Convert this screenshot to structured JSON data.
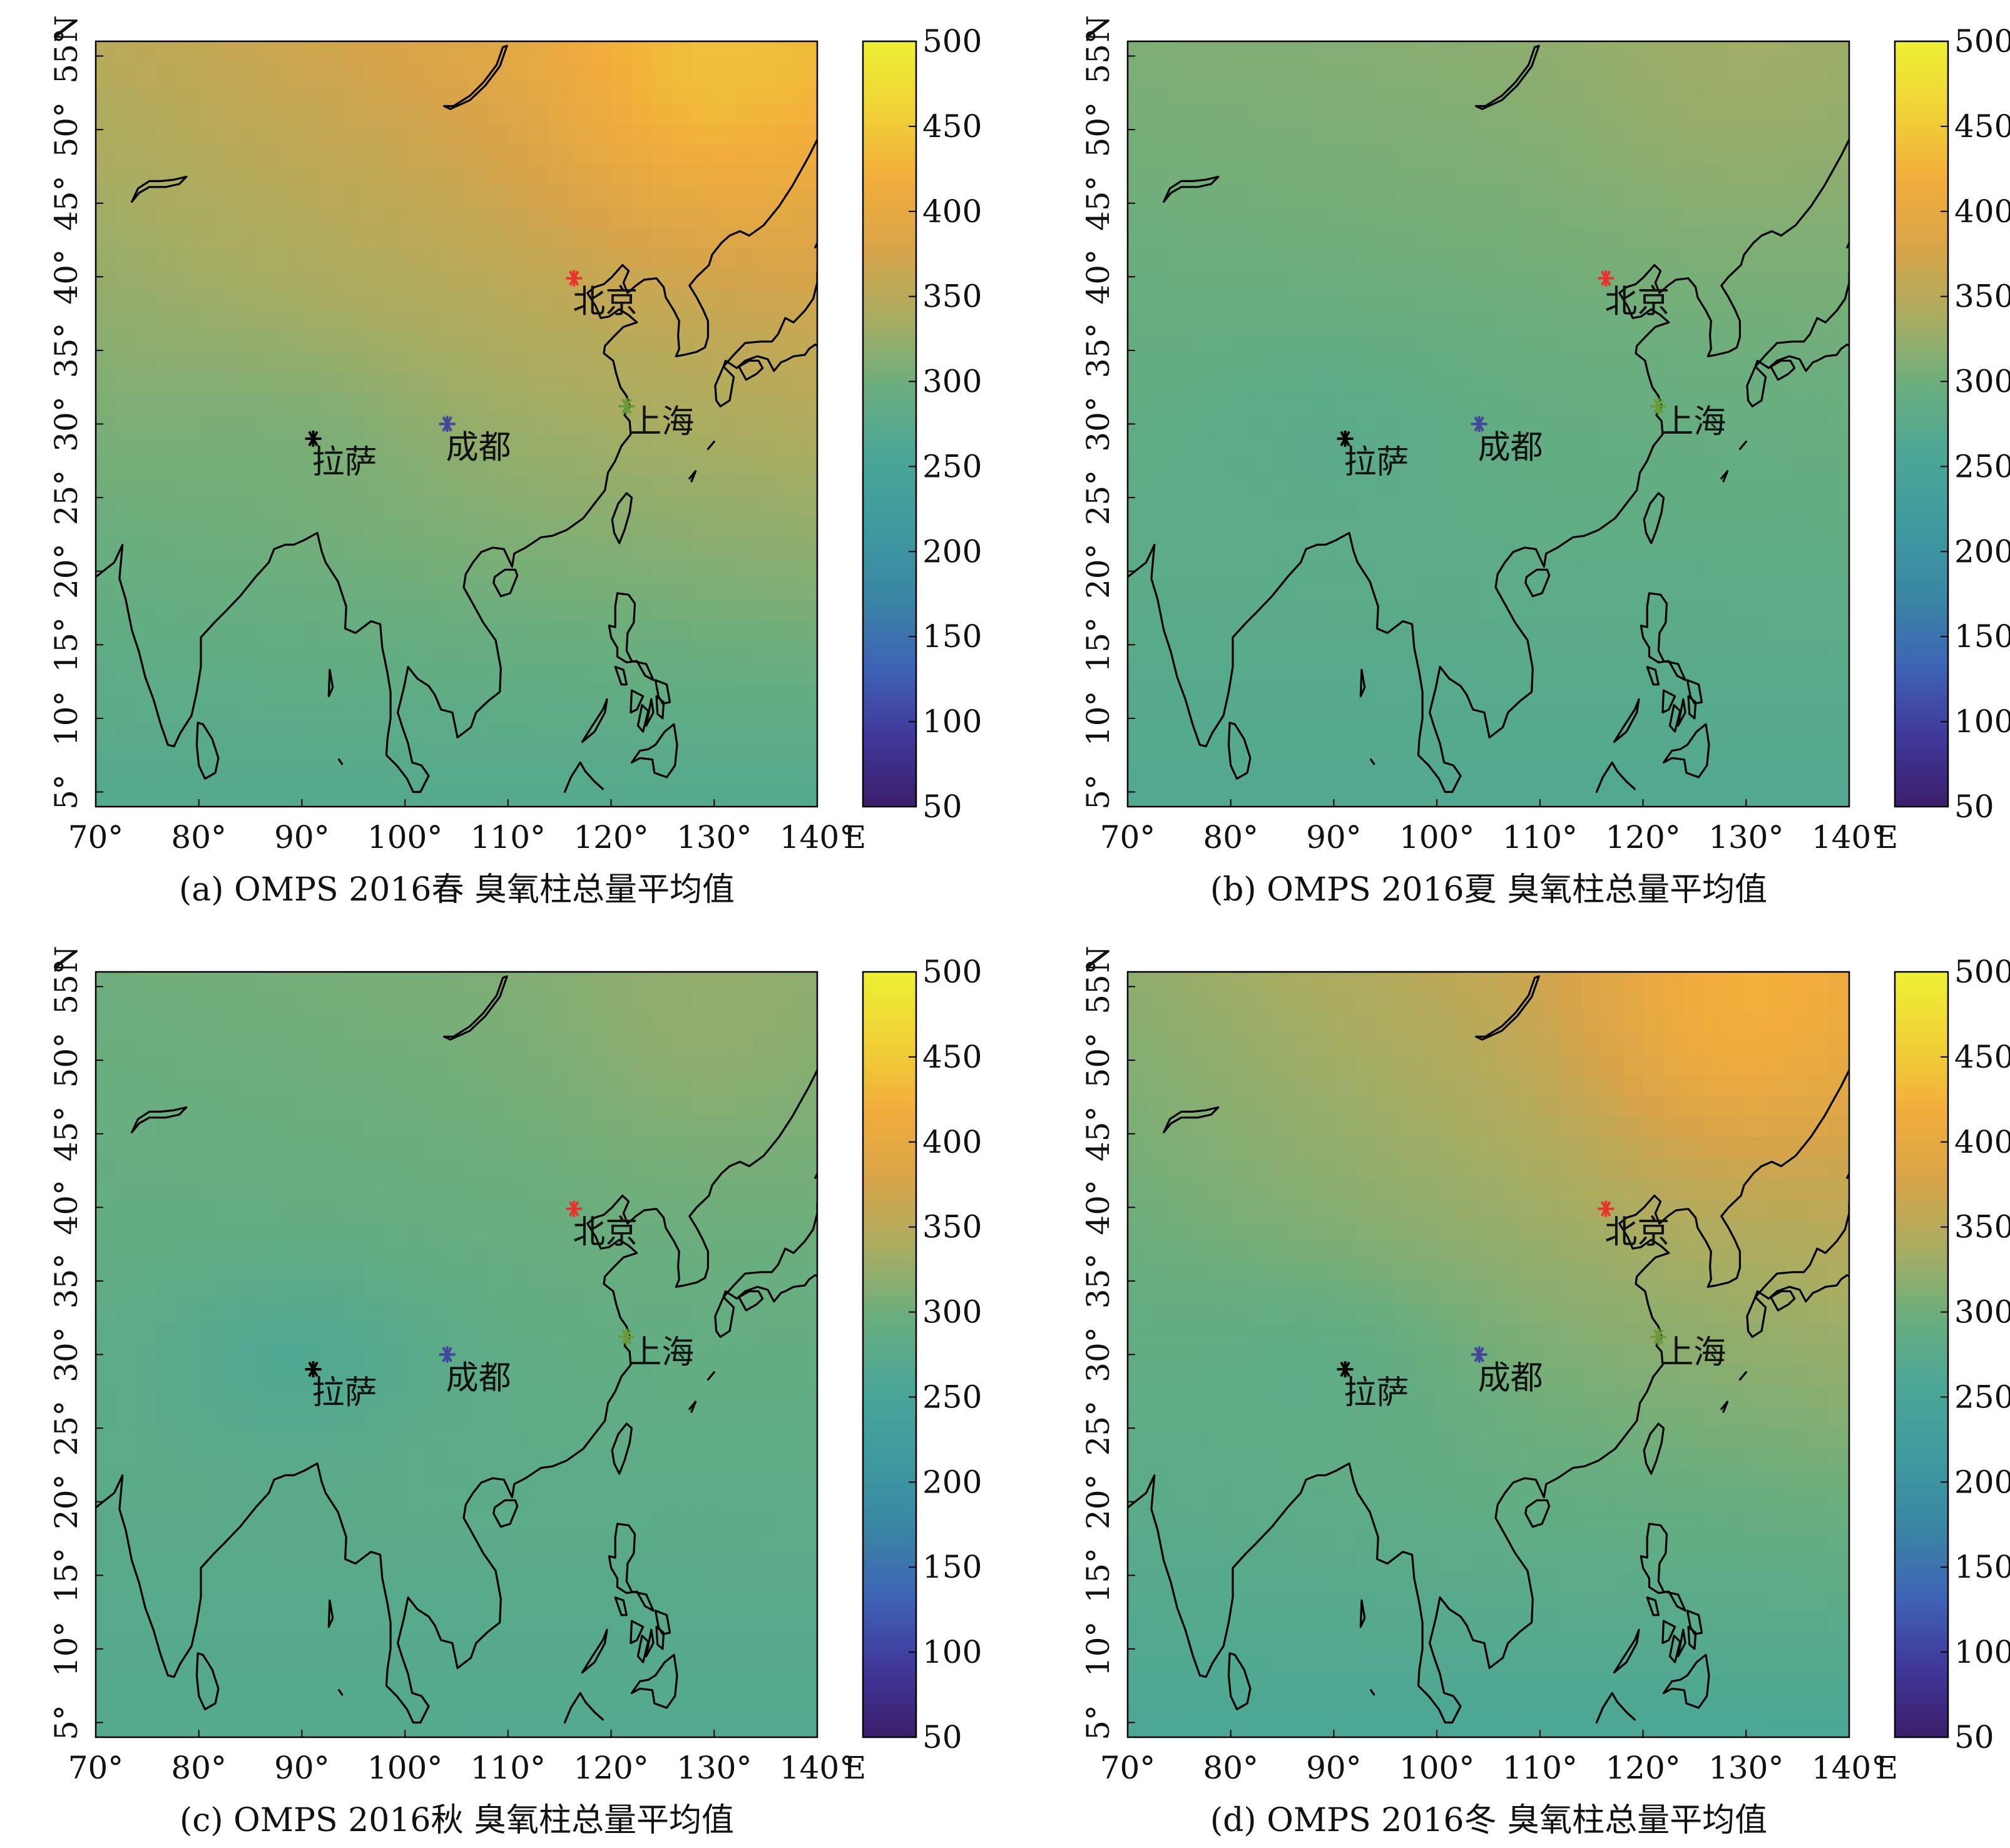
{
  "colors": {
    "colormap": [
      "#3c1e6b",
      "#40389a",
      "#3e63b6",
      "#3a86a4",
      "#3f9aa0",
      "#4aa697",
      "#68ae7f",
      "#a8ad62",
      "#d8a44a",
      "#f2ad3c",
      "#f0d236",
      "#eef033"
    ],
    "beijing_marker": "#e8332c",
    "chengdu_marker": "#43469b",
    "shanghai_marker": "#6a9a3a",
    "lhasa_marker": "#000000"
  },
  "colorbar_ticks": [
    "500",
    "450",
    "400",
    "350",
    "300",
    "250",
    "200",
    "150",
    "100",
    "50"
  ],
  "x_ticks": [
    "70°",
    "80°",
    "90°",
    "100°",
    "110°",
    "120°",
    "130°",
    "140°"
  ],
  "x_axis_label": "E",
  "y_ticks": [
    "5°",
    "10°",
    "15°",
    "20°",
    "25°",
    "30°",
    "35°",
    "40°",
    "45°",
    "50°",
    "55°"
  ],
  "y_axis_label": "N",
  "cities": [
    {
      "key": "beijing",
      "name": "北京",
      "lon": 116.4,
      "lat": 39.9,
      "marker_color": "#e8332c"
    },
    {
      "key": "shanghai",
      "name": "上海",
      "lon": 121.5,
      "lat": 31.2,
      "marker_color": "#6a9a3a"
    },
    {
      "key": "chengdu",
      "name": "成都",
      "lon": 104.1,
      "lat": 30.0,
      "marker_color": "#43469b"
    },
    {
      "key": "lhasa",
      "name": "拉萨",
      "lon": 91.1,
      "lat": 29.0,
      "marker_color": "#000000"
    }
  ],
  "panels": [
    {
      "id": "a",
      "caption": "(a) OMPS 2016春 臭氧柱总量平均值",
      "season": "spring",
      "ozone_field": {
        "nw": 350,
        "ne": 420,
        "sw": 268,
        "se": 268,
        "north_east_boost": 35,
        "tibet_low": 10
      }
    },
    {
      "id": "b",
      "caption": "(b) OMPS 2016夏 臭氧柱总量平均值",
      "season": "summer",
      "ozone_field": {
        "nw": 310,
        "ne": 325,
        "sw": 265,
        "se": 265,
        "north_east_boost": 10,
        "tibet_low": 12
      }
    },
    {
      "id": "c",
      "caption": "(c) OMPS 2016秋 臭氧柱总量平均值",
      "season": "autumn",
      "ozone_field": {
        "nw": 300,
        "ne": 315,
        "sw": 268,
        "se": 266,
        "north_east_boost": 12,
        "tibet_low": 22
      }
    },
    {
      "id": "d",
      "caption": "(d) OMPS 2016冬 臭氧柱总量平均值",
      "season": "winter",
      "ozone_field": {
        "nw": 320,
        "ne": 395,
        "sw": 258,
        "se": 255,
        "north_east_boost": 45,
        "tibet_low": 14
      }
    }
  ]
}
